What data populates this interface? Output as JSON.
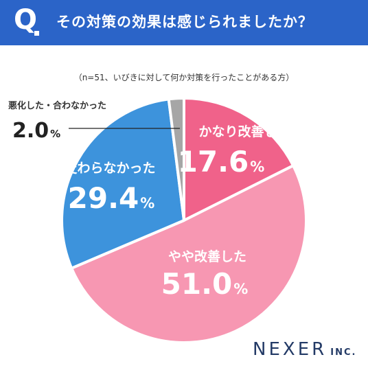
{
  "header": {
    "q_mark": "Q",
    "question": "その対策の効果は感じられましたか？"
  },
  "note": "（n=51、いびきに対して何か対策を行ったことがある方）",
  "brand": {
    "main": "NEXER",
    "sub": "INC."
  },
  "chart_data": {
    "type": "pie",
    "title": "",
    "slices": [
      {
        "label": "かなり改善した",
        "value": 17.6,
        "display": "17.6",
        "color": "#f0628a"
      },
      {
        "label": "やや改善した",
        "value": 51.0,
        "display": "51.0",
        "color": "#f797b2"
      },
      {
        "label": "変わらなかった",
        "value": 29.4,
        "display": "29.4",
        "color": "#3d93dc"
      },
      {
        "label": "悪化した・合わなかった",
        "value": 2.0,
        "display": "2.0",
        "color": "#a6a6a6"
      }
    ],
    "unit": "%"
  }
}
